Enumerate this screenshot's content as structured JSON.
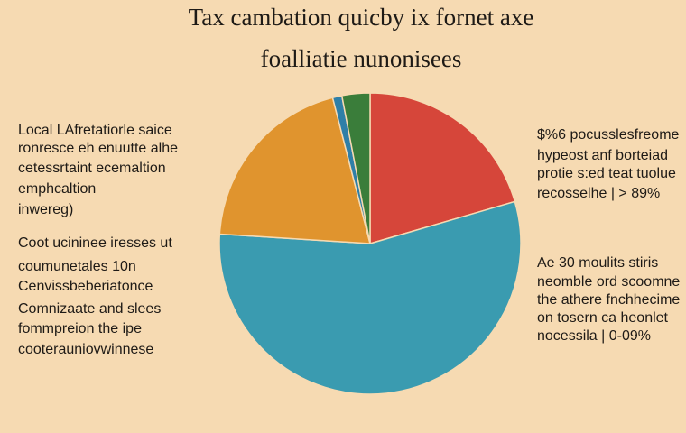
{
  "chart_data": {
    "type": "pie",
    "title": [
      "Tax cambation quicby ix fornet axe",
      "foalliatie nunonisees"
    ],
    "values": [
      20.5,
      55.5,
      20,
      1,
      3
    ],
    "colors": [
      "#d6463a",
      "#3a9bb0",
      "#e0942e",
      "#2f7fa8",
      "#3a7d3a"
    ],
    "left_notes": [
      [
        "Local LAfretatiorle saice",
        "ronresce eh enuutte alhe",
        "cetessrtaint ecemaltion",
        "emphcaltion",
        "inwereg)"
      ],
      [
        "Coot ucininee iresses ut",
        "coumunetales 10n",
        "Cenvissbeberiatonce"
      ],
      [
        "Comnizaate and slees",
        "fommpreion the ipe",
        "cooterauniovwinnese"
      ]
    ],
    "right_notes": [
      [
        "$%6 pocusslesfreome",
        "hypeost anf borteiad",
        "protie s:ed teat tuolue",
        "recosselhe | > 89%"
      ],
      [
        "Ae 30 moulits stiris",
        "neomble ord scoomne",
        "the athere fnchhecime",
        "on tosern ca heonlet",
        "nocessila | 0-09%"
      ]
    ]
  }
}
